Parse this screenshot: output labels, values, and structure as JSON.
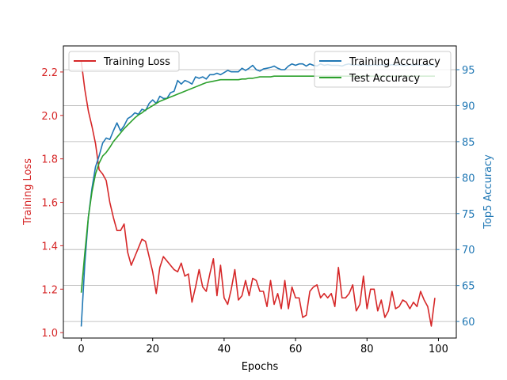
{
  "chart_data": {
    "type": "line",
    "title": "",
    "xlabel": "Epochs",
    "y_left_label": "Training Loss",
    "y_right_label": "Top5 Accuracy",
    "xlim": [
      -5,
      105
    ],
    "y_left_lim": [
      0.975,
      2.32
    ],
    "y_right_lim": [
      57.7,
      98.3
    ],
    "x_ticks": [
      0,
      20,
      40,
      60,
      80,
      100
    ],
    "y_left_ticks": [
      1.0,
      1.2,
      1.4,
      1.6,
      1.8,
      2.0,
      2.2
    ],
    "y_right_ticks": [
      60,
      65,
      70,
      75,
      80,
      85,
      90,
      95
    ],
    "grid": "horizontal lines at right-axis ticks",
    "colors": {
      "loss": "#d62728",
      "train_acc": "#1f77b4",
      "test_acc": "#2ca02c",
      "left_axis": "#d62728",
      "right_axis": "#1f77b4"
    },
    "legend_left": {
      "placement": "upper-left",
      "entries": [
        "Training Loss"
      ]
    },
    "legend_right": {
      "placement": "upper-right",
      "entries": [
        "Training Accuracy",
        "Test Accuracy"
      ]
    },
    "series": [
      {
        "name": "Training Loss",
        "axis": "left",
        "color": "#d62728",
        "x": [
          0,
          1,
          2,
          3,
          4,
          5,
          6,
          7,
          8,
          9,
          10,
          11,
          12,
          13,
          14,
          15,
          16,
          17,
          18,
          19,
          20,
          21,
          22,
          23,
          24,
          25,
          26,
          27,
          28,
          29,
          30,
          31,
          32,
          33,
          34,
          35,
          36,
          37,
          38,
          39,
          40,
          41,
          42,
          43,
          44,
          45,
          46,
          47,
          48,
          49,
          50,
          51,
          52,
          53,
          54,
          55,
          56,
          57,
          58,
          59,
          60,
          61,
          62,
          63,
          64,
          65,
          66,
          67,
          68,
          69,
          70,
          71,
          72,
          73,
          74,
          75,
          76,
          77,
          78,
          79,
          80,
          81,
          82,
          83,
          84,
          85,
          86,
          87,
          88,
          89,
          90,
          91,
          92,
          93,
          94,
          95,
          96,
          97,
          98,
          99
        ],
        "y": [
          2.25,
          2.12,
          2.02,
          1.95,
          1.87,
          1.75,
          1.73,
          1.7,
          1.6,
          1.53,
          1.47,
          1.47,
          1.5,
          1.37,
          1.31,
          1.35,
          1.39,
          1.43,
          1.42,
          1.35,
          1.28,
          1.18,
          1.3,
          1.35,
          1.33,
          1.31,
          1.29,
          1.28,
          1.32,
          1.26,
          1.27,
          1.14,
          1.21,
          1.29,
          1.21,
          1.19,
          1.27,
          1.34,
          1.17,
          1.31,
          1.16,
          1.13,
          1.2,
          1.29,
          1.15,
          1.17,
          1.24,
          1.17,
          1.25,
          1.24,
          1.19,
          1.19,
          1.12,
          1.24,
          1.13,
          1.18,
          1.11,
          1.24,
          1.11,
          1.21,
          1.16,
          1.16,
          1.07,
          1.08,
          1.19,
          1.21,
          1.22,
          1.16,
          1.18,
          1.16,
          1.18,
          1.12,
          1.3,
          1.16,
          1.16,
          1.18,
          1.22,
          1.1,
          1.13,
          1.26,
          1.11,
          1.2,
          1.2,
          1.1,
          1.15,
          1.07,
          1.1,
          1.19,
          1.11,
          1.12,
          1.15,
          1.14,
          1.11,
          1.14,
          1.12,
          1.19,
          1.15,
          1.12,
          1.03,
          1.16
        ]
      },
      {
        "name": "Training Accuracy",
        "axis": "right",
        "color": "#1f77b4",
        "x": [
          0,
          1,
          2,
          3,
          4,
          5,
          6,
          7,
          8,
          9,
          10,
          11,
          12,
          13,
          14,
          15,
          16,
          17,
          18,
          19,
          20,
          21,
          22,
          23,
          24,
          25,
          26,
          27,
          28,
          29,
          30,
          31,
          32,
          33,
          34,
          35,
          36,
          37,
          38,
          39,
          40,
          41,
          42,
          43,
          44,
          45,
          46,
          47,
          48,
          49,
          50,
          51,
          52,
          53,
          54,
          55,
          56,
          57,
          58,
          59,
          60,
          61,
          62,
          63,
          64,
          65,
          66,
          67,
          68,
          69,
          70,
          71,
          72,
          73,
          74,
          75,
          76,
          77,
          78,
          79,
          80,
          81,
          82,
          83,
          84,
          85,
          86,
          87,
          88,
          89,
          90,
          91,
          92,
          93,
          94,
          95,
          96,
          97,
          98,
          99
        ],
        "y": [
          59.3,
          68.0,
          74.5,
          78.5,
          81.5,
          83.0,
          84.8,
          85.5,
          85.3,
          86.5,
          87.6,
          86.5,
          87.2,
          88.2,
          88.5,
          89.0,
          88.8,
          89.5,
          89.3,
          90.3,
          90.8,
          90.3,
          91.3,
          91.0,
          91.0,
          91.8,
          92.0,
          93.5,
          93.0,
          93.5,
          93.3,
          93.0,
          94.0,
          93.8,
          94.0,
          93.7,
          94.3,
          94.3,
          94.5,
          94.3,
          94.6,
          94.9,
          94.7,
          94.7,
          94.7,
          95.2,
          94.9,
          95.2,
          95.6,
          95.0,
          94.8,
          95.1,
          95.2,
          95.3,
          95.5,
          95.2,
          95.0,
          95.0,
          95.5,
          95.8,
          95.6,
          95.8,
          95.8,
          95.5,
          95.8,
          95.6,
          95.5,
          95.8,
          95.6,
          95.7,
          95.6,
          95.6,
          95.6,
          95.5,
          95.7,
          95.8,
          95.6,
          95.7,
          95.6,
          95.7,
          95.6,
          95.6,
          95.7,
          95.6,
          95.7,
          95.6,
          95.6,
          95.7,
          95.6,
          95.7,
          95.6,
          95.6,
          95.7,
          95.6,
          95.7,
          95.6,
          95.7,
          95.6,
          95.7,
          95.6
        ]
      },
      {
        "name": "Test Accuracy",
        "axis": "right",
        "color": "#2ca02c",
        "x": [
          0,
          1,
          2,
          3,
          4,
          5,
          6,
          7,
          8,
          9,
          10,
          11,
          12,
          13,
          14,
          15,
          16,
          17,
          18,
          19,
          20,
          21,
          22,
          23,
          24,
          25,
          26,
          27,
          28,
          29,
          30,
          31,
          32,
          33,
          34,
          35,
          36,
          37,
          38,
          39,
          40,
          41,
          42,
          43,
          44,
          45,
          46,
          47,
          48,
          49,
          50,
          51,
          52,
          53,
          54,
          55,
          56,
          57,
          58,
          59,
          60,
          61,
          62,
          63,
          64,
          65,
          66,
          67,
          68,
          69,
          70,
          71,
          72,
          73,
          74,
          75,
          76,
          77,
          78,
          79,
          80,
          81,
          82,
          83,
          84,
          85,
          86,
          87,
          88,
          89,
          90,
          91,
          92,
          93,
          94,
          95,
          96,
          97,
          98,
          99
        ],
        "y": [
          64.0,
          69.5,
          74.5,
          78.0,
          80.5,
          82.0,
          83.0,
          83.5,
          84.2,
          85.0,
          85.6,
          86.2,
          86.8,
          87.3,
          87.8,
          88.3,
          88.7,
          89.0,
          89.4,
          89.7,
          90.0,
          90.3,
          90.6,
          90.8,
          91.0,
          91.2,
          91.4,
          91.6,
          91.8,
          92.0,
          92.2,
          92.4,
          92.6,
          92.8,
          93.0,
          93.2,
          93.3,
          93.4,
          93.5,
          93.6,
          93.6,
          93.6,
          93.6,
          93.6,
          93.6,
          93.7,
          93.7,
          93.8,
          93.8,
          93.9,
          94.0,
          94.0,
          94.0,
          94.0,
          94.1,
          94.1,
          94.1,
          94.1,
          94.1,
          94.1,
          94.1,
          94.1,
          94.1,
          94.1,
          94.1,
          94.1,
          94.1,
          94.1,
          94.1,
          94.1,
          94.1,
          94.1,
          94.1,
          94.1,
          94.1,
          94.1,
          94.1,
          94.1,
          94.1,
          94.1,
          94.1,
          94.1,
          94.1,
          94.1,
          94.1,
          94.1,
          94.1,
          94.1,
          94.1,
          94.1,
          94.1,
          94.1,
          94.1,
          94.1,
          94.1,
          94.1,
          94.1,
          94.1,
          94.1,
          94.1
        ]
      }
    ]
  }
}
